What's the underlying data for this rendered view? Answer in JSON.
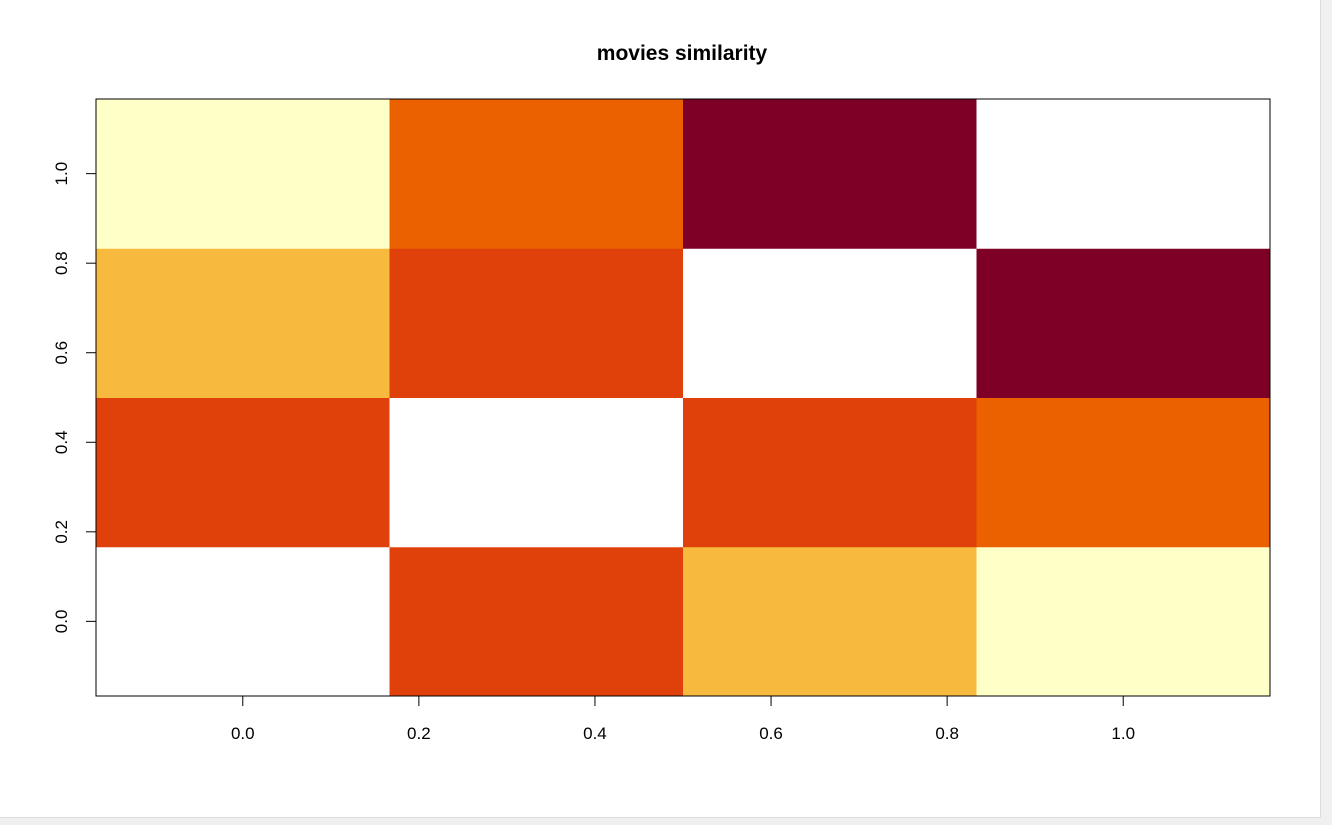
{
  "chart_data": {
    "type": "heatmap",
    "title": "movies similarity",
    "xlabel": "",
    "ylabel": "",
    "x_range": [
      -0.1667,
      1.1667
    ],
    "y_range": [
      -0.1667,
      1.1667
    ],
    "x_ticks": [
      0.0,
      0.2,
      0.4,
      0.6,
      0.8,
      1.0
    ],
    "x_tick_labels": [
      "0.0",
      "0.2",
      "0.4",
      "0.6",
      "0.8",
      "1.0"
    ],
    "y_ticks": [
      0.0,
      0.2,
      0.4,
      0.6,
      0.8,
      1.0
    ],
    "y_tick_labels": [
      "0.0",
      "0.2",
      "0.4",
      "0.6",
      "0.8",
      "1.0"
    ],
    "x_centers": [
      0.0,
      0.3333,
      0.6667,
      1.0
    ],
    "y_centers": [
      0.0,
      0.3333,
      0.6667,
      1.0
    ],
    "cell_levels_note_rows_bottom_to_top": "level 0 = white (highest), 5 = dark red (lowest)",
    "levels": [
      [
        0,
        3,
        2,
        1
      ],
      [
        3,
        0,
        3,
        4
      ],
      [
        2,
        3,
        0,
        5
      ],
      [
        1,
        4,
        5,
        0
      ]
    ],
    "palette": [
      "#ffffff",
      "#ffffc8",
      "#f7ba3e",
      "#e0400a",
      "#eb6100",
      "#7f0027"
    ],
    "grid": false,
    "legend": "none",
    "box_color": "#000000"
  }
}
